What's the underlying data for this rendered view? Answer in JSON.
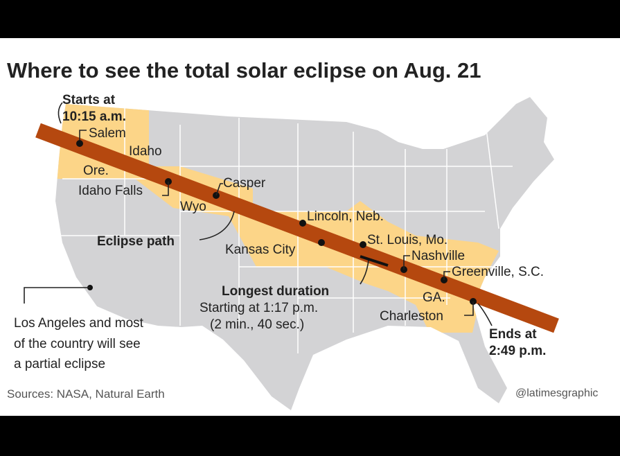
{
  "header": {
    "title": "Where to see the total solar eclipse on Aug. 21"
  },
  "start": {
    "line1": "Starts at",
    "line2": "10:15 a.m."
  },
  "places": {
    "salem": "Salem",
    "idaho": "Idaho",
    "ore": "Ore.",
    "idaho_falls": "Idaho Falls",
    "casper": "Casper",
    "wyo": "Wyo",
    "lincoln": "Lincoln, Neb.",
    "kansas_city": "Kansas City",
    "st_louis": "St. Louis, Mo.",
    "nashville": "Nashville",
    "greenville": "Greenville, S.C.",
    "ga": "GA.",
    "charleston": "Charleston"
  },
  "path_label": "Eclipse path",
  "longest": {
    "title": "Longest duration",
    "line1": "Starting at 1:17 p.m.",
    "line2": "(2 min., 40 sec.)"
  },
  "end": {
    "line1": "Ends at",
    "line2": "2:49 p.m."
  },
  "partial": {
    "line1": "Los Angeles and most",
    "line2": "of the country will see",
    "line3": "a partial eclipse"
  },
  "footer": {
    "sources": "Sources: NASA, Natural Earth",
    "credit": "@latimesgraphic"
  }
}
